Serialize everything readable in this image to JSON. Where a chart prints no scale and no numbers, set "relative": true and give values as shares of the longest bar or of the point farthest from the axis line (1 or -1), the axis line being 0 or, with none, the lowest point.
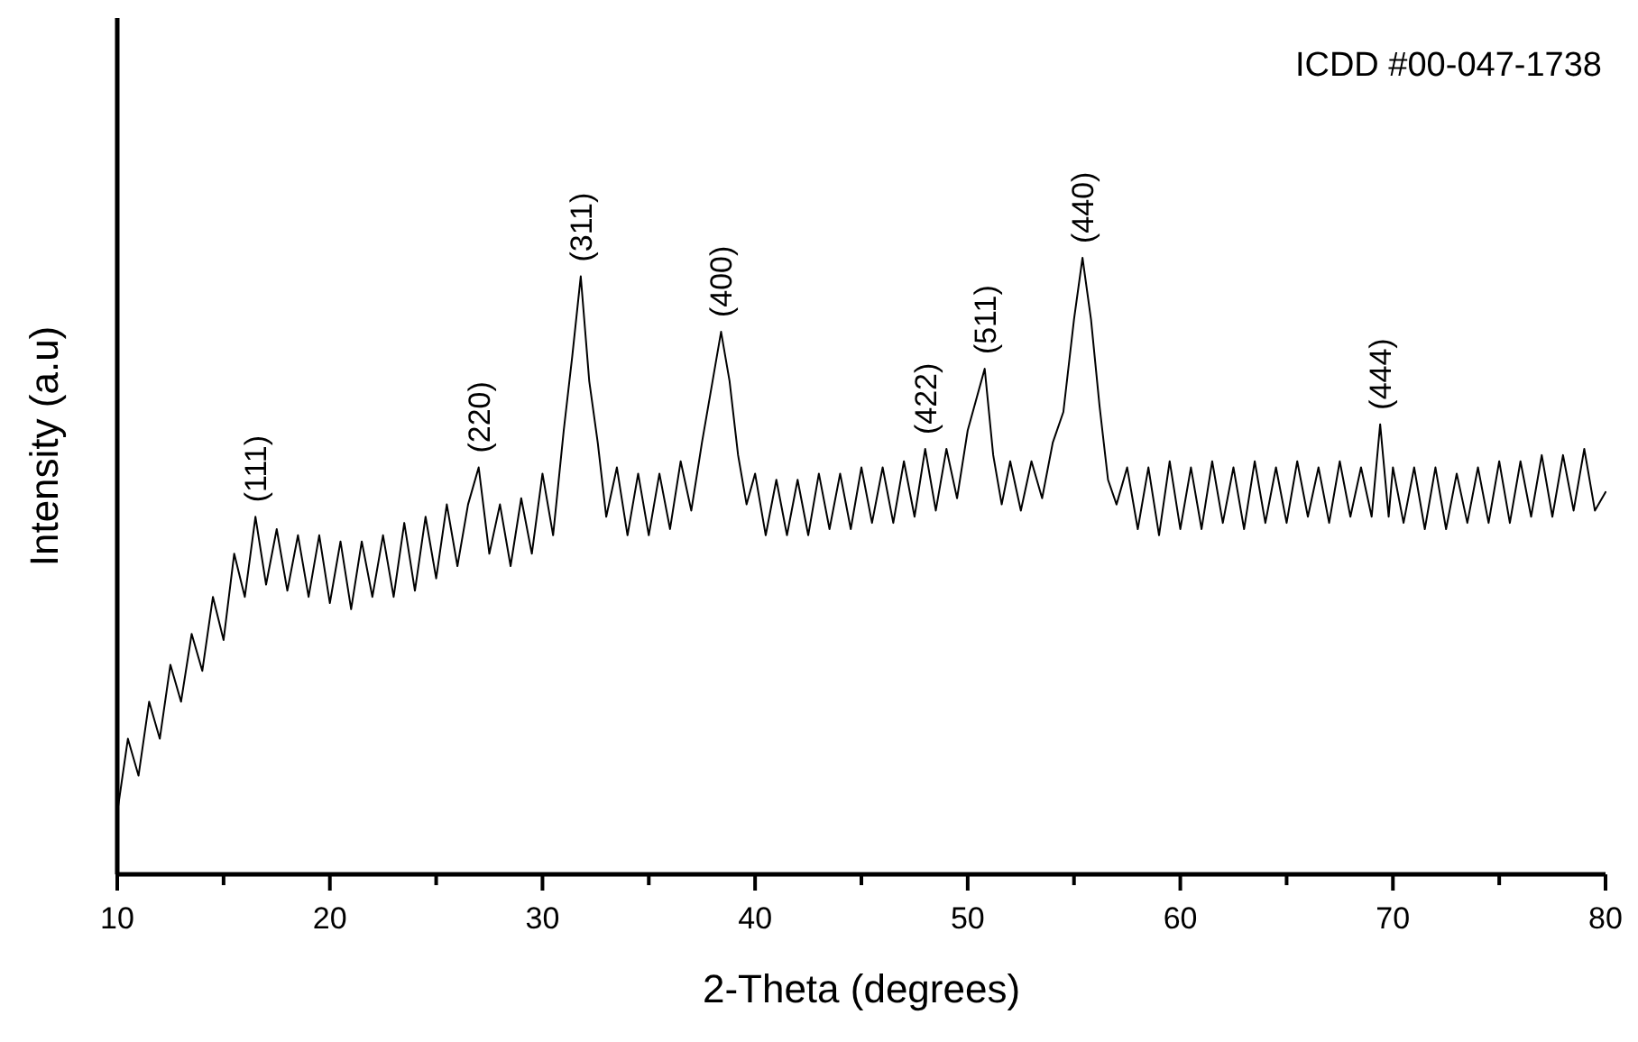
{
  "chart_data": {
    "type": "line",
    "xlabel": "2-Theta (degrees)",
    "ylabel": "Intensity (a.u)",
    "relative": true,
    "tick_labels": "x",
    "marker": "none",
    "line_style": "solid",
    "xlim": [
      10,
      80
    ],
    "xticks": [
      10,
      {
        "value": 15,
        "label": null
      },
      20,
      {
        "value": 25,
        "label": null
      },
      30,
      {
        "value": 35,
        "label": null
      },
      40,
      {
        "value": 45,
        "label": null
      },
      50,
      {
        "value": 55,
        "label": null
      },
      60,
      {
        "value": 65,
        "label": null
      },
      70,
      {
        "value": 75,
        "label": null
      },
      80
    ],
    "annotations": [
      "ICDD #00-047-1738",
      {
        "text": "(111)",
        "x": 16.5,
        "y": 0.58
      },
      {
        "text": "(220)",
        "x": 27,
        "y": 0.66
      },
      {
        "text": "(311)",
        "x": 31.8,
        "y": 0.97
      },
      {
        "text": "(400)",
        "x": 38.4,
        "y": 0.88
      },
      {
        "text": "(422)",
        "x": 48,
        "y": 0.69
      },
      {
        "text": "(511)",
        "x": 50.8,
        "y": 0.82
      },
      {
        "text": "(440)",
        "x": 55.4,
        "y": 1.0
      },
      {
        "text": "(444)",
        "x": 69.4,
        "y": 0.73
      }
    ],
    "series": [
      {
        "color": "#000000",
        "x": [
          10,
          10.5,
          11,
          11.5,
          12,
          12.5,
          13,
          13.5,
          14,
          14.5,
          15,
          15.5,
          16,
          16.5,
          17,
          17.5,
          18,
          18.5,
          19,
          19.5,
          20,
          20.5,
          21,
          21.5,
          22,
          22.5,
          23,
          23.5,
          24,
          24.5,
          25,
          25.5,
          26,
          26.5,
          27,
          27.5,
          28,
          28.5,
          29,
          29.5,
          30,
          30.5,
          31,
          31.4,
          31.8,
          32.2,
          32.6,
          33,
          33.5,
          34,
          34.5,
          35,
          35.5,
          36,
          36.5,
          37,
          37.5,
          38,
          38.4,
          38.8,
          39.2,
          39.6,
          40,
          40.5,
          41,
          41.5,
          42,
          42.5,
          43,
          43.5,
          44,
          44.5,
          45,
          45.5,
          46,
          46.5,
          47,
          47.5,
          48,
          48.5,
          49,
          49.5,
          50,
          50.4,
          50.8,
          51.2,
          51.6,
          52,
          52.5,
          53,
          53.5,
          54,
          54.5,
          55,
          55.4,
          55.8,
          56.2,
          56.6,
          57,
          57.5,
          58,
          58.5,
          59,
          59.5,
          60,
          60.5,
          61,
          61.5,
          62,
          62.5,
          63,
          63.5,
          64,
          64.5,
          65,
          65.5,
          66,
          66.5,
          67,
          67.5,
          68,
          68.5,
          69,
          69.4,
          69.8,
          70,
          70.5,
          71,
          71.5,
          72,
          72.5,
          73,
          73.5,
          74,
          74.5,
          75,
          75.5,
          76,
          76.5,
          77,
          77.5,
          78,
          78.5,
          79,
          79.5,
          80
        ],
        "values": [
          0.1,
          0.22,
          0.16,
          0.28,
          0.22,
          0.34,
          0.28,
          0.39,
          0.33,
          0.45,
          0.38,
          0.52,
          0.45,
          0.58,
          0.47,
          0.56,
          0.46,
          0.55,
          0.45,
          0.55,
          0.44,
          0.54,
          0.43,
          0.54,
          0.45,
          0.55,
          0.45,
          0.57,
          0.46,
          0.58,
          0.48,
          0.6,
          0.5,
          0.6,
          0.66,
          0.52,
          0.6,
          0.5,
          0.61,
          0.52,
          0.65,
          0.55,
          0.72,
          0.84,
          0.97,
          0.8,
          0.7,
          0.58,
          0.66,
          0.55,
          0.65,
          0.55,
          0.65,
          0.56,
          0.67,
          0.59,
          0.7,
          0.8,
          0.88,
          0.8,
          0.68,
          0.6,
          0.65,
          0.55,
          0.64,
          0.55,
          0.64,
          0.55,
          0.65,
          0.56,
          0.65,
          0.56,
          0.66,
          0.57,
          0.66,
          0.57,
          0.67,
          0.58,
          0.69,
          0.59,
          0.69,
          0.61,
          0.72,
          0.77,
          0.82,
          0.68,
          0.6,
          0.67,
          0.59,
          0.67,
          0.61,
          0.7,
          0.75,
          0.9,
          1.0,
          0.9,
          0.76,
          0.64,
          0.6,
          0.66,
          0.56,
          0.66,
          0.55,
          0.67,
          0.56,
          0.66,
          0.56,
          0.67,
          0.57,
          0.66,
          0.56,
          0.67,
          0.57,
          0.66,
          0.57,
          0.67,
          0.58,
          0.66,
          0.57,
          0.67,
          0.58,
          0.66,
          0.58,
          0.73,
          0.58,
          0.66,
          0.57,
          0.66,
          0.56,
          0.66,
          0.56,
          0.65,
          0.57,
          0.66,
          0.57,
          0.67,
          0.57,
          0.67,
          0.58,
          0.68,
          0.58,
          0.68,
          0.59,
          0.69,
          0.59,
          0.62
        ]
      }
    ]
  }
}
